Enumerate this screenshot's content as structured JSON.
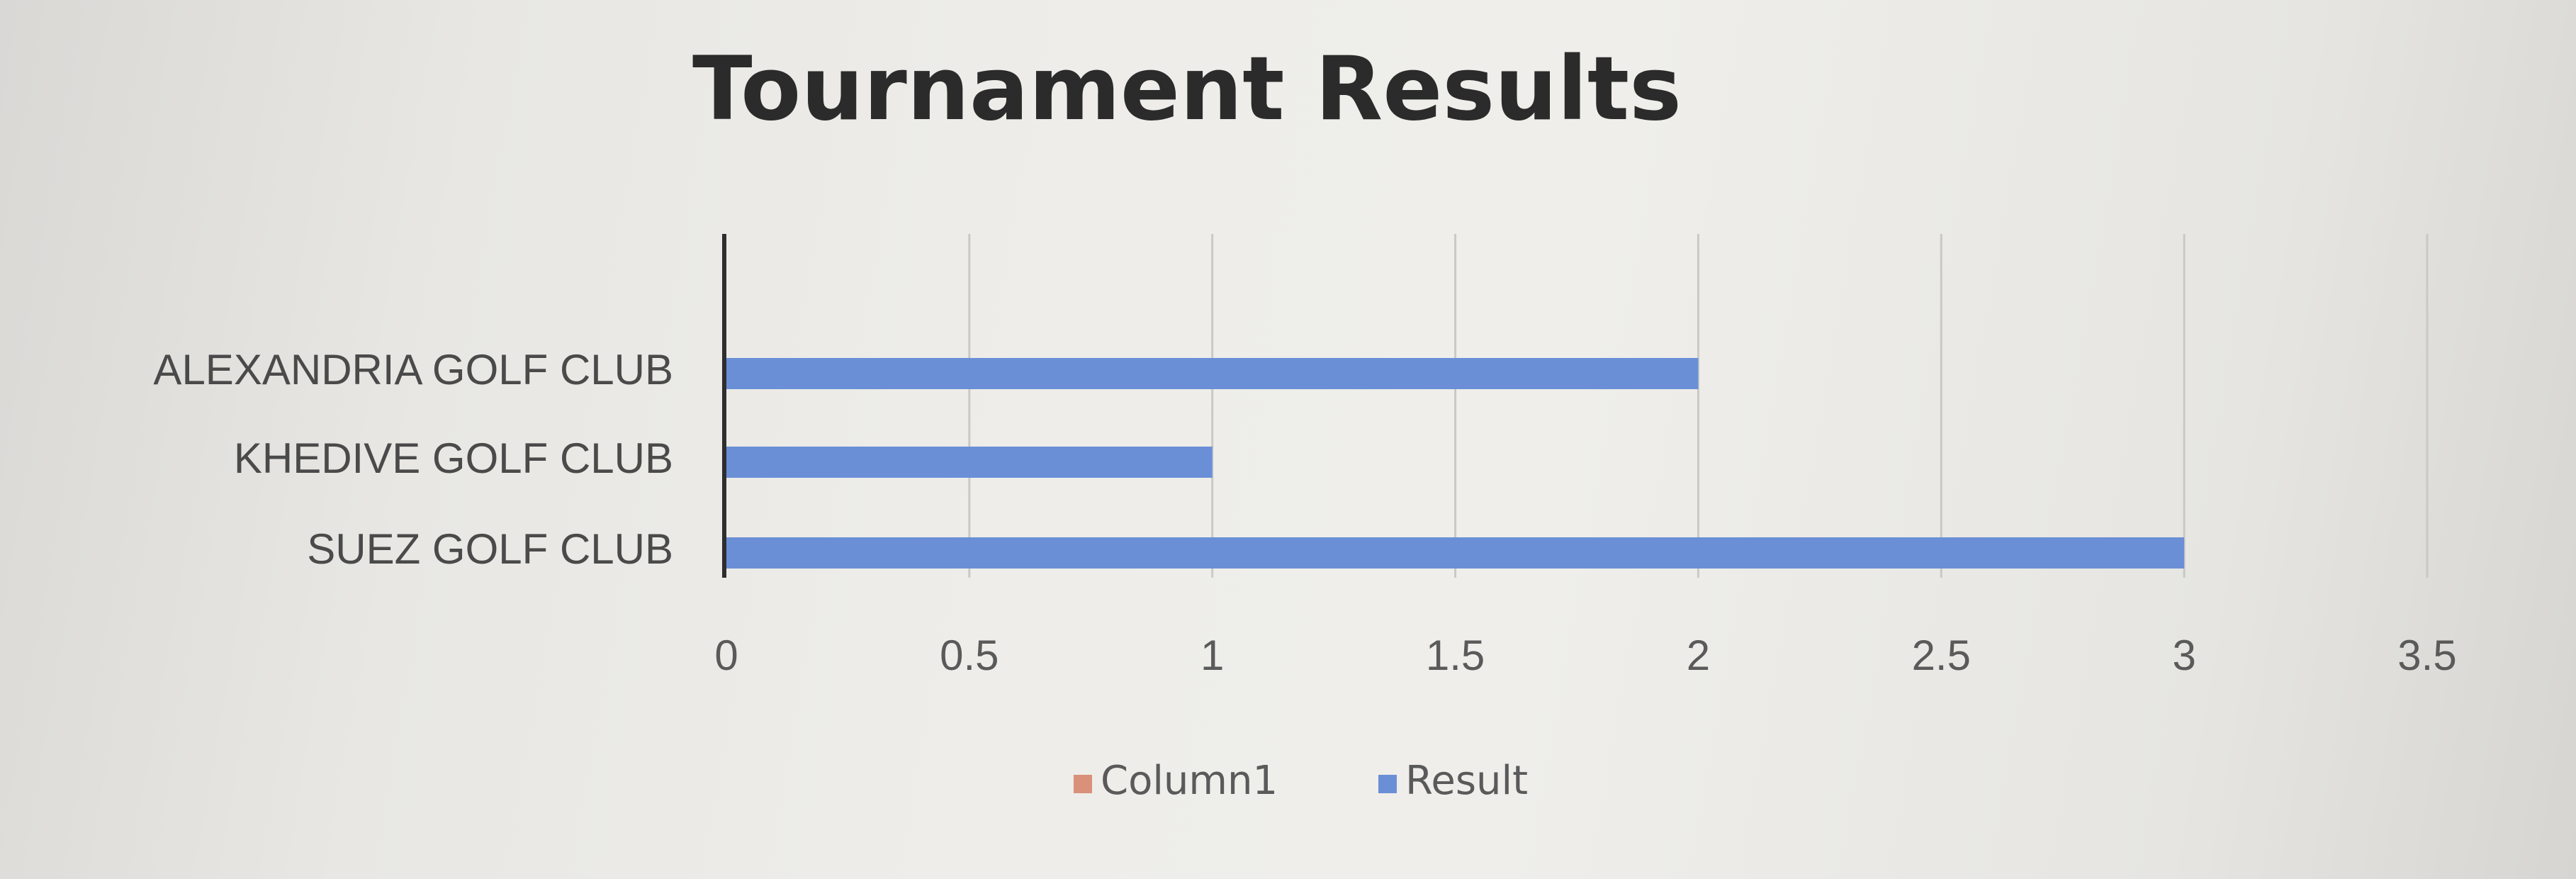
{
  "chart_data": {
    "type": "bar",
    "orientation": "horizontal",
    "title": "Tournament Results",
    "categories": [
      "ALEXANDRIA GOLF CLUB",
      "KHEDIVE GOLF CLUB",
      "SUEZ GOLF CLUB"
    ],
    "series": [
      {
        "name": "Column1",
        "values": [
          0,
          0,
          0
        ],
        "color": "#d9917a"
      },
      {
        "name": "Result",
        "values": [
          2,
          1,
          3
        ],
        "color": "#6a8fd6"
      }
    ],
    "x_ticks": [
      "0",
      "0.5",
      "1",
      "1.5",
      "2",
      "2.5",
      "3",
      "3.5"
    ],
    "xlim": [
      0,
      3.5
    ],
    "grid": true,
    "legend_position": "bottom"
  }
}
